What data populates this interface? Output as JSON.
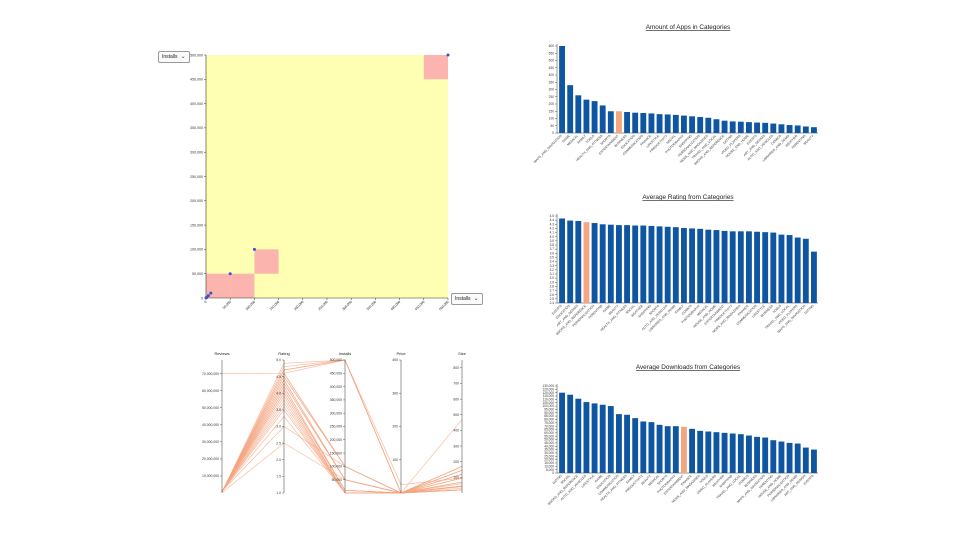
{
  "scatter": {
    "y_select": "Installs",
    "x_select": "Installs",
    "chevron_icon": "chevron-down-icon",
    "background": "#ffffb3",
    "cell_color": "#fbb4ae",
    "point_color": "#3d4fd1",
    "chart_data": {
      "type": "scatter",
      "xlabel": "Installs",
      "ylabel": "Installs",
      "xlim": [
        0,
        500000
      ],
      "ylim": [
        0,
        500000
      ],
      "yticks": [
        "0",
        "50,000",
        "100,000",
        "150,000",
        "200,000",
        "250,000",
        "300,000",
        "350,000",
        "400,000",
        "450,000",
        "500,000"
      ],
      "xticks": [
        "0",
        "50,000",
        "100,000",
        "150,000",
        "200,000",
        "250,000",
        "300,000",
        "350,000",
        "400,000",
        "450,000",
        "500,000"
      ],
      "cells": [
        {
          "x0": 0,
          "x1": 50000,
          "y0": 0,
          "y1": 50000
        },
        {
          "x0": 50000,
          "x1": 100000,
          "y0": 0,
          "y1": 50000
        },
        {
          "x0": 100000,
          "x1": 150000,
          "y0": 50000,
          "y1": 100000
        },
        {
          "x0": 450000,
          "x1": 500000,
          "y0": 450000,
          "y1": 500000
        }
      ],
      "points": [
        {
          "x": 500,
          "y": 500
        },
        {
          "x": 1000,
          "y": 1000
        },
        {
          "x": 5000,
          "y": 5000
        },
        {
          "x": 10000,
          "y": 10000
        },
        {
          "x": 50000,
          "y": 50000
        },
        {
          "x": 100000,
          "y": 100000
        },
        {
          "x": 500000,
          "y": 500000
        }
      ]
    }
  },
  "parallel": {
    "line_color": "#f4a582",
    "axes": [
      {
        "name": "Reviews",
        "ticks": [
          "10,000,000",
          "20,000,000",
          "30,000,000",
          "40,000,000",
          "50,000,000",
          "60,000,000",
          "70,000,000"
        ],
        "min": 0,
        "max": 78000000
      },
      {
        "name": "Rating",
        "ticks": [
          "1.0",
          "1.5",
          "2.0",
          "2.5",
          "3.0",
          "3.5",
          "4.0",
          "4.5",
          "5.0"
        ],
        "min": 1,
        "max": 5
      },
      {
        "name": "Installs",
        "ticks": [
          "50,000",
          "100,000",
          "150,000",
          "200,000",
          "250,000",
          "300,000",
          "350,000",
          "400,000",
          "450,000",
          "500,000"
        ],
        "min": 0,
        "max": 500000
      },
      {
        "name": "Price",
        "ticks": [
          "100",
          "200",
          "300",
          "400"
        ],
        "min": 0,
        "max": 400
      },
      {
        "name": "Size",
        "ticks": [
          "100",
          "200",
          "300",
          "400",
          "500",
          "600",
          "700",
          "800"
        ],
        "min": 0,
        "max": 850
      }
    ]
  },
  "charts": [
    {
      "chart_data": {
        "type": "bar",
        "title": "Amount of Apps in Categories",
        "categories": [
          "MAPS_AND_NAVIGATION",
          "GAME",
          "MEDICAL",
          "FAMILY",
          "TOOLS",
          "HEALTH_AND_FITNESS",
          "SPORTS",
          "ENTERTAINMENT",
          "BUSINESS",
          "EDUCATION",
          "COMMUNICATION",
          "FINANCE",
          "LIFESTYLE",
          "PRODUCTIVITY",
          "SOCIAL",
          "PHOTOGRAPHY",
          "SHOPPING",
          "PERSONALIZATION",
          "NEWS_AND_MAGAZINES",
          "TRAVEL_AND_LOCAL",
          "BOOKS_AND_REFERENCE",
          "DATING",
          "VIDEO_PLAYERS",
          "HOUSE_AND_HOME",
          "EVENTS",
          "ART_AND_DESIGN",
          "AUTO_AND_VEHICLES",
          "COMICS",
          "LIBRARIES_AND_DEMO",
          "WEATHER",
          "PARENTING",
          "BEAUTY"
        ],
        "values": [
          600,
          330,
          260,
          230,
          220,
          190,
          150,
          150,
          145,
          140,
          138,
          135,
          130,
          128,
          125,
          120,
          115,
          110,
          105,
          95,
          85,
          80,
          78,
          75,
          72,
          70,
          65,
          60,
          55,
          52,
          45,
          40
        ],
        "highlight": 7,
        "ylim": [
          0,
          600
        ],
        "yticks": [
          "0",
          "50",
          "100",
          "150",
          "200",
          "250",
          "300",
          "350",
          "400",
          "450",
          "500",
          "550",
          "600"
        ]
      }
    },
    {
      "chart_data": {
        "type": "bar",
        "title": "Average Rating from Categories",
        "categories": [
          "EVENTS",
          "EDUCATION",
          "ART_AND_DESIGN",
          "BOOKS_AND_REFERENCE",
          "PERSONALIZATION",
          "PARENTING",
          "GAME",
          "BEAUTY",
          "HEALTH_AND_FITNESS",
          "SOCIAL",
          "WEATHER",
          "SHOPPING",
          "SPORTS",
          "AUTO_AND_VEHICLES",
          "LIBRARIES_AND_DEMO",
          "FAMILY",
          "COMICS",
          "PHOTOGRAPHY",
          "MEDICAL",
          "HOUSE_AND_HOME",
          "ENTERTAINMENT",
          "PRODUCTIVITY",
          "NEWS_AND_MAGAZINES",
          "FINANCE",
          "COMMUNICATION",
          "LIFESTYLE",
          "BUSINESS",
          "TOOLS",
          "TRAVEL_AND_LOCAL",
          "VIDEO_PLAYERS",
          "MAPS_AND_NAVIGATION",
          "DATING"
        ],
        "values": [
          4.44,
          4.39,
          4.38,
          4.35,
          4.33,
          4.3,
          4.29,
          4.28,
          4.28,
          4.27,
          4.27,
          4.26,
          4.25,
          4.24,
          4.23,
          4.21,
          4.2,
          4.19,
          4.17,
          4.16,
          4.14,
          4.13,
          4.13,
          4.13,
          4.12,
          4.11,
          4.1,
          4.05,
          4.04,
          3.98,
          3.95,
          3.64
        ],
        "highlight": 3,
        "ylim": [
          2.4,
          4.5
        ],
        "yticks": [
          "2.4",
          "2.5",
          "2.6",
          "2.7",
          "2.8",
          "2.9",
          "3.0",
          "3.1",
          "3.2",
          "3.3",
          "3.4",
          "3.5",
          "3.6",
          "3.7",
          "3.8",
          "3.9",
          "4.0",
          "4.1",
          "4.2",
          "4.3",
          "4.4",
          "4.5"
        ]
      }
    },
    {
      "chart_data": {
        "type": "bar",
        "title": "Average Downloads from Categories",
        "categories": [
          "DATING",
          "SOCIAL",
          "BOOKS_AND_REFERENCE",
          "AUTO_AND_VEHICLES",
          "LIFESTYLE",
          "GAME",
          "EDUCATION",
          "COMMUNICATION",
          "HEALTH_AND_FITNESS",
          "FAMILY",
          "PRODUCTIVITY",
          "BEAUTY",
          "MEDICAL",
          "SPORTS",
          "PHOTOGRAPHY",
          "ENTERTAINMENT",
          "FINANCE",
          "NEWS_AND_MAGAZINES",
          "TOOLS",
          "VIDEO_PLAYERS",
          "WEATHER",
          "SHOPPING",
          "TRAVEL_AND_LOCAL",
          "COMICS",
          "BUSINESS",
          "MAPS_AND_NAVIGATION",
          "PARENTING",
          "HOUSE_AND_HOME",
          "PERSONALIZATION",
          "LIBRARIES_AND_DEMO",
          "ART_AND_DESIGN",
          "EVENTS"
        ],
        "values": [
          120000,
          117000,
          111000,
          106000,
          104000,
          102000,
          100000,
          88000,
          87000,
          82000,
          77000,
          76000,
          72000,
          70000,
          70000,
          69000,
          66000,
          63000,
          62000,
          61000,
          60000,
          59000,
          58000,
          56000,
          54000,
          53000,
          49000,
          47000,
          45000,
          44000,
          38000,
          35000
        ],
        "highlight": 15,
        "ylim": [
          0,
          130000
        ],
        "yticks": [
          "0",
          "5,000",
          "10,000",
          "15,000",
          "20,000",
          "25,000",
          "30,000",
          "35,000",
          "40,000",
          "45,000",
          "50,000",
          "55,000",
          "60,000",
          "65,000",
          "70,000",
          "75,000",
          "80,000",
          "85,000",
          "90,000",
          "95,000",
          "100,000",
          "105,000",
          "110,000",
          "115,000",
          "120,000",
          "125,000",
          "130,000"
        ]
      }
    }
  ],
  "bar_color": "#0e56a1",
  "highlight_color": "#f4a582"
}
